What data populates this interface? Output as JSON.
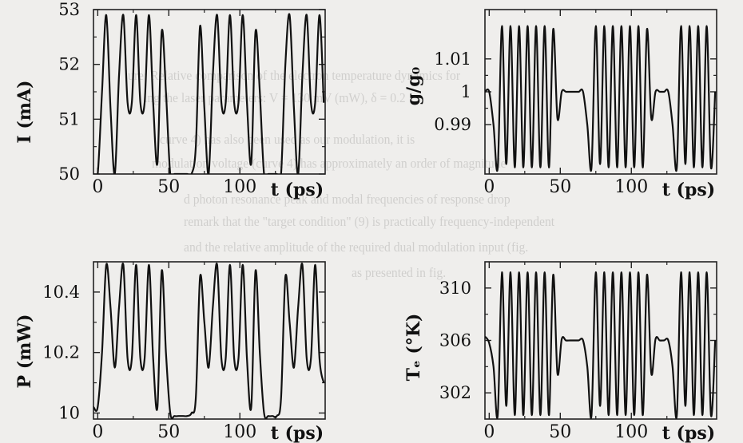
{
  "background_text": [
    "ure: Relative comparison of the electron temperature dynamics for",
    "ing the laser parameters: V = 130 mV (mW), δ = 0.2",
    "curve 4) has also been used as our modulation, it is",
    "modulation voltage (curve 4) has approximately an order of magnitude",
    "d photon resonance peak and modal frequencies of response drop",
    "remark that the \"target condition\" (9) is practically frequency-independent",
    "and the relative amplitude of the required dual modulation input (fig.",
    "as presented in fig."
  ],
  "chart_data": [
    {
      "type": "line",
      "title": "",
      "xlabel": "t (ps)",
      "ylabel": "I (mA)",
      "xlim": [
        -3,
        160
      ],
      "ylim": [
        50,
        53
      ],
      "xticks": [
        0,
        50,
        100
      ],
      "yticks": [
        50,
        51,
        52,
        53
      ],
      "ytick_labels": [
        "50",
        "51",
        "52",
        "53"
      ],
      "series": [
        {
          "x": [
            -3,
            0,
            3,
            6,
            9,
            12,
            15,
            18,
            21,
            24,
            27,
            30,
            33,
            36,
            39,
            42,
            45,
            48,
            51,
            54,
            57,
            60,
            63,
            66,
            69,
            72,
            75,
            78,
            81,
            84,
            87,
            90,
            93,
            96,
            99,
            102,
            105,
            108,
            111,
            114,
            117,
            120,
            123,
            126,
            129,
            132,
            135,
            138,
            141,
            144,
            147,
            150,
            153,
            156,
            159
          ],
          "y": [
            50,
            50,
            51.5,
            52.9,
            51.2,
            50,
            51.8,
            52.9,
            51.3,
            51.3,
            52.9,
            51.3,
            51.3,
            52.9,
            51.3,
            50.2,
            52.6,
            51.5,
            50,
            50,
            50,
            50,
            50,
            50,
            50.5,
            52.7,
            51.2,
            50,
            51.8,
            52.9,
            51.3,
            51.3,
            52.9,
            51.3,
            51.3,
            52.9,
            51.3,
            50.2,
            52.6,
            51.5,
            50,
            50,
            50,
            50,
            50,
            52.0,
            52.9,
            51.2,
            50,
            51.8,
            52.9,
            51.3,
            51.3,
            52.9,
            51.3
          ]
        }
      ]
    },
    {
      "type": "line",
      "title": "",
      "xlabel": "t (ps)",
      "ylabel": "g/g₀",
      "xlim": [
        -3,
        160
      ],
      "ylim": [
        0.975,
        1.025
      ],
      "xticks": [
        0,
        50,
        100
      ],
      "yticks": [
        0.99,
        1,
        1.01
      ],
      "ytick_labels": [
        "0.99",
        "1",
        "1.01"
      ],
      "series": [
        {
          "x": [
            -3,
            0,
            3,
            6,
            9,
            12,
            15,
            18,
            21,
            24,
            27,
            30,
            33,
            36,
            39,
            42,
            45,
            48,
            51,
            54,
            57,
            60,
            63,
            66,
            69,
            72,
            75,
            78,
            81,
            84,
            87,
            90,
            93,
            96,
            99,
            102,
            105,
            108,
            111,
            114,
            117,
            120,
            123,
            126,
            129,
            132,
            135,
            138,
            141,
            144,
            147,
            150,
            153,
            156,
            159
          ],
          "y": [
            1.0,
            1.0,
            0.99,
            0.977,
            1.02,
            0.978,
            1.02,
            0.977,
            1.02,
            0.977,
            1.02,
            0.977,
            1.02,
            0.977,
            1.02,
            0.977,
            1.019,
            0.992,
            1.0,
            1.0,
            1.0,
            1.0,
            1.0,
            1.0,
            0.99,
            0.977,
            1.02,
            0.978,
            1.02,
            0.977,
            1.02,
            0.977,
            1.02,
            0.977,
            1.02,
            0.977,
            1.02,
            0.977,
            1.019,
            0.992,
            1.0,
            1.0,
            1.0,
            1.0,
            0.99,
            0.977,
            1.02,
            0.978,
            1.02,
            0.977,
            1.02,
            0.977,
            1.02,
            0.977,
            1.0
          ]
        }
      ]
    },
    {
      "type": "line",
      "title": "",
      "xlabel": "t (ps)",
      "ylabel": "P (mW)",
      "xlim": [
        -3,
        160
      ],
      "ylim": [
        9.98,
        10.5
      ],
      "xticks": [
        0,
        50,
        100
      ],
      "yticks": [
        10,
        10.2,
        10.4
      ],
      "ytick_labels": [
        "10",
        "10.2",
        "10.4"
      ],
      "series": [
        {
          "x": [
            -3,
            0,
            3,
            6,
            9,
            12,
            15,
            18,
            21,
            24,
            27,
            30,
            33,
            36,
            39,
            42,
            45,
            48,
            51,
            54,
            57,
            60,
            63,
            66,
            69,
            72,
            75,
            78,
            81,
            84,
            87,
            90,
            93,
            96,
            99,
            102,
            105,
            108,
            111,
            114,
            117,
            120,
            123,
            126,
            129,
            132,
            135,
            138,
            141,
            144,
            147,
            150,
            153,
            156,
            159
          ],
          "y": [
            10.02,
            10.02,
            10.2,
            10.49,
            10.35,
            10.15,
            10.35,
            10.49,
            10.18,
            10.18,
            10.49,
            10.18,
            10.18,
            10.49,
            10.18,
            10.02,
            10.47,
            10.2,
            10.0,
            9.99,
            9.99,
            9.99,
            9.99,
            10.0,
            10.05,
            10.45,
            10.3,
            10.15,
            10.35,
            10.49,
            10.18,
            10.18,
            10.49,
            10.18,
            10.18,
            10.49,
            10.18,
            10.02,
            10.47,
            10.2,
            10.0,
            9.99,
            9.99,
            9.99,
            10.05,
            10.45,
            10.3,
            10.15,
            10.35,
            10.49,
            10.18,
            10.18,
            10.49,
            10.18,
            10.1
          ]
        }
      ]
    },
    {
      "type": "line",
      "title": "",
      "xlabel": "t (ps)",
      "ylabel": "Tₑ (°K)",
      "xlim": [
        -3,
        160
      ],
      "ylim": [
        300,
        312
      ],
      "xticks": [
        0,
        50,
        100
      ],
      "yticks": [
        302,
        306,
        310
      ],
      "ytick_labels": [
        "302",
        "306",
        "310"
      ],
      "series": [
        {
          "x": [
            -3,
            0,
            3,
            6,
            9,
            12,
            15,
            18,
            21,
            24,
            27,
            30,
            33,
            36,
            39,
            42,
            45,
            48,
            51,
            54,
            57,
            60,
            63,
            66,
            69,
            72,
            75,
            78,
            81,
            84,
            87,
            90,
            93,
            96,
            99,
            102,
            105,
            108,
            111,
            114,
            117,
            120,
            123,
            126,
            129,
            132,
            135,
            138,
            141,
            144,
            147,
            150,
            153,
            156,
            159
          ],
          "y": [
            306.3,
            305.8,
            304,
            300.3,
            311.2,
            301,
            311.2,
            300.3,
            311.2,
            300.3,
            311.2,
            300.3,
            311.2,
            300.3,
            311.2,
            300.3,
            311,
            303.5,
            306.1,
            306,
            306,
            306,
            306,
            306,
            304,
            300.3,
            311.2,
            301,
            311.2,
            300.3,
            311.2,
            300.3,
            311.2,
            300.3,
            311.2,
            300.3,
            311.2,
            300.3,
            311,
            303.5,
            306.1,
            306,
            306,
            306,
            304,
            300.3,
            311.2,
            301,
            311.2,
            300.3,
            311.2,
            300.3,
            311.2,
            300.3,
            306
          ]
        }
      ]
    }
  ]
}
